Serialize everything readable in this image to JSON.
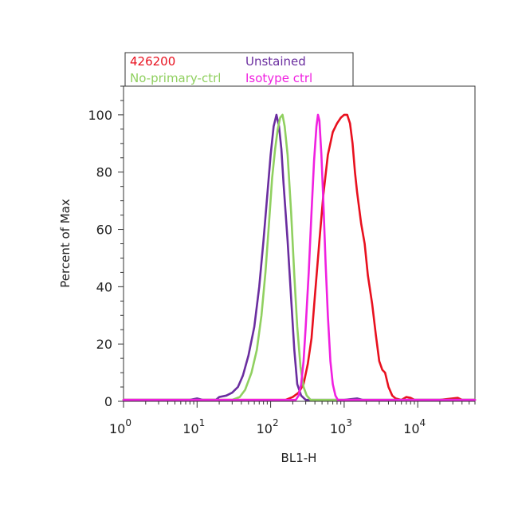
{
  "chart_data": {
    "type": "line",
    "xlabel": "BL1-H",
    "ylabel": "Percent of Max",
    "x_scale": "log",
    "xlim": [
      1,
      60000
    ],
    "ylim": [
      0,
      110
    ],
    "grid": false,
    "legend_placement": "top-left",
    "x_ticks": [
      {
        "value": 1,
        "base": "10",
        "exp": "0"
      },
      {
        "value": 10,
        "base": "10",
        "exp": "1"
      },
      {
        "value": 100,
        "base": "10",
        "exp": "2"
      },
      {
        "value": 1000,
        "base": "10",
        "exp": "3"
      },
      {
        "value": 10000,
        "base": "10",
        "exp": "4"
      }
    ],
    "y_ticks": [
      0,
      20,
      40,
      60,
      80,
      100
    ],
    "series": [
      {
        "name": "426200",
        "color": "#e8101e",
        "points": [
          [
            1,
            0.5
          ],
          [
            100,
            0.5
          ],
          [
            160,
            0.5
          ],
          [
            200,
            1.5
          ],
          [
            240,
            3
          ],
          [
            280,
            6
          ],
          [
            320,
            13
          ],
          [
            360,
            22
          ],
          [
            400,
            37
          ],
          [
            460,
            56
          ],
          [
            520,
            72
          ],
          [
            600,
            86
          ],
          [
            700,
            94
          ],
          [
            800,
            97
          ],
          [
            900,
            99
          ],
          [
            1000,
            100
          ],
          [
            1100,
            100
          ],
          [
            1200,
            97
          ],
          [
            1300,
            90
          ],
          [
            1400,
            80
          ],
          [
            1500,
            73
          ],
          [
            1700,
            62
          ],
          [
            1900,
            55
          ],
          [
            2100,
            44
          ],
          [
            2400,
            34
          ],
          [
            2700,
            23
          ],
          [
            3000,
            14
          ],
          [
            3300,
            11
          ],
          [
            3600,
            10
          ],
          [
            4000,
            5
          ],
          [
            4500,
            2
          ],
          [
            5000,
            1
          ],
          [
            6000,
            0.5
          ],
          [
            7000,
            1.5
          ],
          [
            8000,
            1.2
          ],
          [
            9000,
            0.5
          ],
          [
            20000,
            0.5
          ],
          [
            35000,
            1.2
          ],
          [
            40000,
            0.5
          ],
          [
            60000,
            0.5
          ]
        ]
      },
      {
        "name": "Unstained",
        "color": "#6a2d9f",
        "points": [
          [
            1,
            0.5
          ],
          [
            8,
            0.5
          ],
          [
            10,
            1
          ],
          [
            12,
            0.5
          ],
          [
            18,
            0.5
          ],
          [
            20,
            1.5
          ],
          [
            25,
            2
          ],
          [
            30,
            3
          ],
          [
            36,
            5
          ],
          [
            42,
            9
          ],
          [
            50,
            16
          ],
          [
            60,
            26
          ],
          [
            70,
            40
          ],
          [
            80,
            56
          ],
          [
            90,
            72
          ],
          [
            100,
            86
          ],
          [
            110,
            96
          ],
          [
            120,
            100
          ],
          [
            130,
            96
          ],
          [
            140,
            88
          ],
          [
            150,
            76
          ],
          [
            170,
            56
          ],
          [
            190,
            36
          ],
          [
            210,
            18
          ],
          [
            230,
            6
          ],
          [
            260,
            2
          ],
          [
            300,
            0.5
          ],
          [
            1000,
            0.5
          ],
          [
            1500,
            1
          ],
          [
            1800,
            0.5
          ],
          [
            60000,
            0.5
          ]
        ]
      },
      {
        "name": "No-primary-ctrl",
        "color": "#90d060",
        "points": [
          [
            1,
            0.5
          ],
          [
            30,
            0.5
          ],
          [
            38,
            1.5
          ],
          [
            45,
            4
          ],
          [
            55,
            10
          ],
          [
            65,
            18
          ],
          [
            75,
            30
          ],
          [
            85,
            45
          ],
          [
            95,
            62
          ],
          [
            105,
            78
          ],
          [
            115,
            88
          ],
          [
            125,
            95
          ],
          [
            135,
            99
          ],
          [
            145,
            100
          ],
          [
            155,
            96
          ],
          [
            170,
            86
          ],
          [
            190,
            66
          ],
          [
            210,
            44
          ],
          [
            230,
            26
          ],
          [
            255,
            12
          ],
          [
            280,
            5
          ],
          [
            310,
            2
          ],
          [
            350,
            0.5
          ],
          [
            60000,
            0.5
          ]
        ]
      },
      {
        "name": "Isotype ctrl",
        "color": "#f020e0",
        "points": [
          [
            1,
            0.5
          ],
          [
            220,
            0.5
          ],
          [
            240,
            2
          ],
          [
            260,
            6
          ],
          [
            280,
            14
          ],
          [
            300,
            26
          ],
          [
            330,
            45
          ],
          [
            360,
            66
          ],
          [
            390,
            84
          ],
          [
            420,
            96
          ],
          [
            440,
            100
          ],
          [
            460,
            98
          ],
          [
            490,
            86
          ],
          [
            520,
            70
          ],
          [
            560,
            48
          ],
          [
            600,
            30
          ],
          [
            650,
            14
          ],
          [
            700,
            6
          ],
          [
            760,
            2
          ],
          [
            820,
            0.5
          ],
          [
            60000,
            0.5
          ]
        ]
      }
    ]
  }
}
